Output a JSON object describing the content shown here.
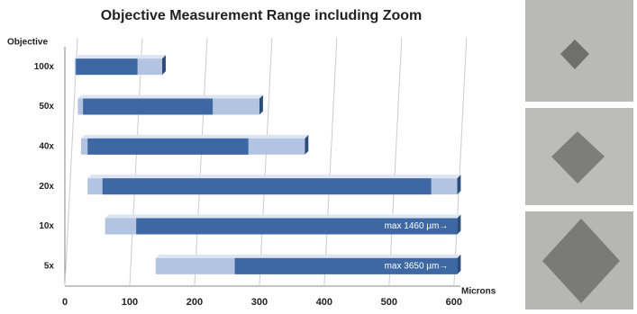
{
  "chart_data": {
    "type": "range-bar",
    "title": "Objective Measurement Range including Zoom",
    "y_label": "Objective",
    "x_label": "Microns",
    "categories": [
      "100x",
      "50x",
      "40x",
      "20x",
      "10x",
      "5x"
    ],
    "ranges": [
      [
        15,
        150
      ],
      [
        20,
        300
      ],
      [
        25,
        370
      ],
      [
        35,
        605
      ],
      [
        62,
        605
      ],
      [
        140,
        605
      ]
    ],
    "core": [
      [
        17,
        112
      ],
      [
        28,
        228
      ],
      [
        35,
        283
      ],
      [
        58,
        565
      ],
      [
        110,
        605
      ],
      [
        262,
        605
      ]
    ],
    "value_labels": [
      null,
      null,
      null,
      null,
      "max 1460 µm→",
      "max 3650 µm→"
    ],
    "range_color": "#b3c4e3",
    "core_color": "#3d68a3",
    "xlim": [
      0,
      610
    ],
    "xticks": [
      0,
      100,
      200,
      300,
      400,
      500,
      600
    ],
    "grid": true
  }
}
